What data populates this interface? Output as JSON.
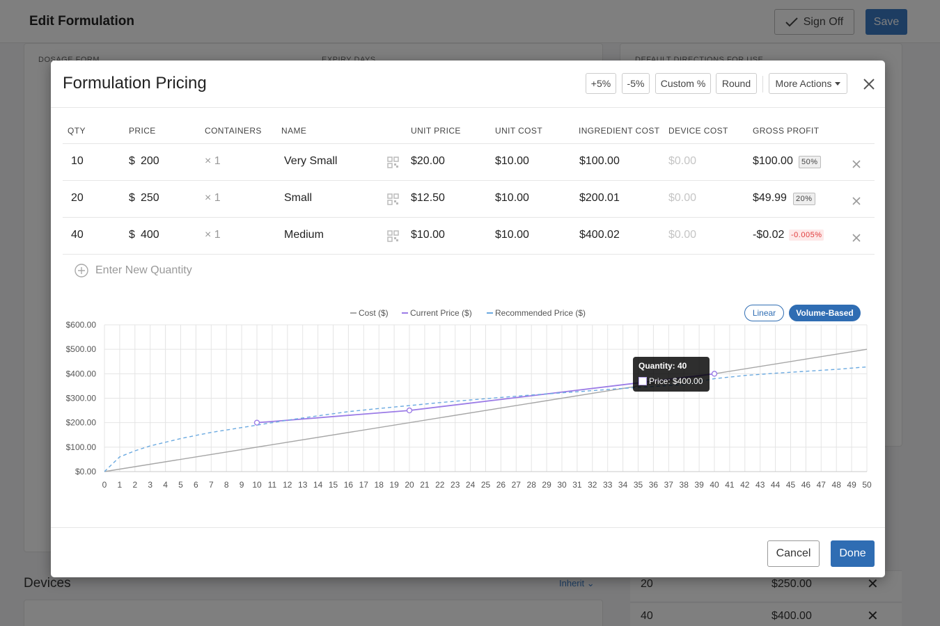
{
  "page": {
    "title": "Edit Formulation",
    "signoff_label": "Sign Off",
    "save_label": "Save",
    "bg_labels": {
      "dosage_form": "DOSAGE FORM",
      "expiry_days": "EXPIRY DAYS",
      "default_directions": "DEFAULT DIRECTIONS FOR USE"
    },
    "devices_title": "Devices",
    "inherit_label": "Inherit",
    "bg_rows": [
      {
        "qty": "20",
        "price": "$250.00"
      },
      {
        "qty": "40",
        "price": "$400.00"
      }
    ]
  },
  "modal": {
    "title": "Formulation Pricing",
    "actions": {
      "plus5": "+5%",
      "minus5": "-5%",
      "custom": "Custom %",
      "round": "Round",
      "more": "More Actions"
    },
    "columns": {
      "qty": "QTY",
      "price": "PRICE",
      "containers": "CONTAINERS",
      "name": "NAME",
      "unit_price": "UNIT PRICE",
      "unit_cost": "UNIT COST",
      "ingredient_cost": "INGREDIENT COST",
      "device_cost": "DEVICE COST",
      "gross_profit": "GROSS PROFIT"
    },
    "rows": [
      {
        "qty": "10",
        "currency": "$",
        "price": "200",
        "containers": "× 1",
        "name": "Very Small",
        "unit_price": "$20.00",
        "unit_cost": "$10.00",
        "ingredient_cost": "$100.00",
        "device_cost": "$0.00",
        "gross_profit": "$100.00",
        "margin": "50%",
        "margin_negative": false
      },
      {
        "qty": "20",
        "currency": "$",
        "price": "250",
        "containers": "× 1",
        "name": "Small",
        "unit_price": "$12.50",
        "unit_cost": "$10.00",
        "ingredient_cost": "$200.01",
        "device_cost": "$0.00",
        "gross_profit": "$49.99",
        "margin": "20%",
        "margin_negative": false
      },
      {
        "qty": "40",
        "currency": "$",
        "price": "400",
        "containers": "× 1",
        "name": "Medium",
        "unit_price": "$10.00",
        "unit_cost": "$10.00",
        "ingredient_cost": "$400.02",
        "device_cost": "$0.00",
        "gross_profit": "-$0.02",
        "margin": "-0.005%",
        "margin_negative": true
      }
    ],
    "add_quantity_placeholder": "Enter New Quantity",
    "toggle": {
      "linear": "Linear",
      "volume": "Volume-Based",
      "selected": "Volume-Based"
    },
    "tooltip": {
      "title": "Quantity: 40",
      "value": "Price: $400.00"
    },
    "cancel_label": "Cancel",
    "done_label": "Done"
  },
  "colors": {
    "primary": "#2f6db3",
    "cost_line": "#a6a6a6",
    "current_price_line": "#9b7be6",
    "recommended_price_line": "#6aa9e0",
    "negative": "#e03b3b"
  },
  "chart_data": {
    "type": "line",
    "legend_position": "top-center",
    "grid": true,
    "xlim": [
      0,
      50
    ],
    "ylim": [
      0,
      600
    ],
    "x_ticks": [
      0,
      1,
      2,
      3,
      4,
      5,
      6,
      7,
      8,
      9,
      10,
      11,
      12,
      13,
      14,
      15,
      16,
      17,
      18,
      19,
      20,
      21,
      22,
      23,
      24,
      25,
      26,
      27,
      28,
      29,
      30,
      31,
      32,
      33,
      34,
      35,
      36,
      37,
      38,
      39,
      40,
      41,
      42,
      43,
      44,
      45,
      46,
      47,
      48,
      49,
      50
    ],
    "y_tick_labels": [
      "$0.00",
      "$100.00",
      "$200.00",
      "$300.00",
      "$400.00",
      "$500.00",
      "$600.00"
    ],
    "y_tick_values": [
      0,
      100,
      200,
      300,
      400,
      500,
      600
    ],
    "series": [
      {
        "name": "Cost ($)",
        "style": "solid",
        "x": [
          0,
          50
        ],
        "y": [
          0,
          500
        ]
      },
      {
        "name": "Current Price ($)",
        "style": "solid",
        "markers": true,
        "x": [
          10,
          20,
          40
        ],
        "y": [
          200,
          250,
          400
        ]
      },
      {
        "name": "Recommended Price ($)",
        "style": "dashed",
        "x": [
          0,
          1,
          2,
          3,
          4,
          5,
          6,
          7,
          8,
          9,
          10,
          12,
          14,
          16,
          18,
          20,
          22,
          24,
          26,
          28,
          30,
          32,
          34,
          36,
          38,
          40,
          42,
          44,
          46,
          48,
          50
        ],
        "y": [
          0,
          60,
          85,
          105,
          120,
          135,
          148,
          160,
          170,
          180,
          190,
          210,
          228,
          245,
          258,
          270,
          282,
          293,
          303,
          313,
          322,
          331,
          340,
          348,
          356,
          380,
          393,
          402,
          410,
          418,
          428
        ]
      }
    ]
  }
}
